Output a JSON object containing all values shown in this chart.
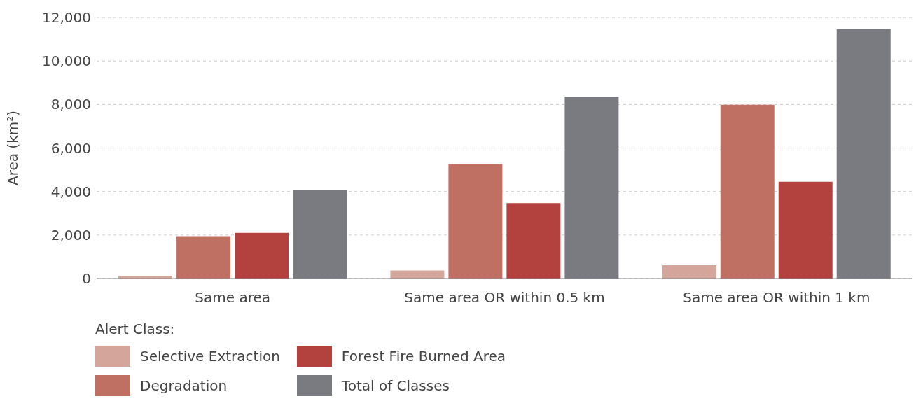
{
  "chart_data": {
    "type": "bar",
    "ylabel": "Area (km²)",
    "legend_title": "Alert Class:",
    "categories": [
      "Same area",
      "Same area OR within 0.5 km",
      "Same area OR within 1 km"
    ],
    "series": [
      {
        "name": "Selective Extraction",
        "color": "#d4a59a",
        "values": [
          130,
          370,
          610
        ]
      },
      {
        "name": "Degradation",
        "color": "#c07063",
        "values": [
          1950,
          5260,
          7990
        ]
      },
      {
        "name": "Forest Fire Burned Area",
        "color": "#b3413e",
        "values": [
          2100,
          3470,
          4450
        ]
      },
      {
        "name": "Total of Classes",
        "color": "#7a7b80",
        "values": [
          4050,
          8360,
          11460
        ]
      }
    ],
    "ylim": [
      0,
      12000
    ],
    "yticks": [
      {
        "value": 0,
        "label": "0"
      },
      {
        "value": 2000,
        "label": "2,000"
      },
      {
        "value": 4000,
        "label": "4,000"
      },
      {
        "value": 6000,
        "label": "6,000"
      },
      {
        "value": 8000,
        "label": "8,000"
      },
      {
        "value": 10000,
        "label": "10,000"
      },
      {
        "value": 12000,
        "label": "12,000"
      }
    ],
    "grid": "y",
    "legend": "bottom"
  }
}
